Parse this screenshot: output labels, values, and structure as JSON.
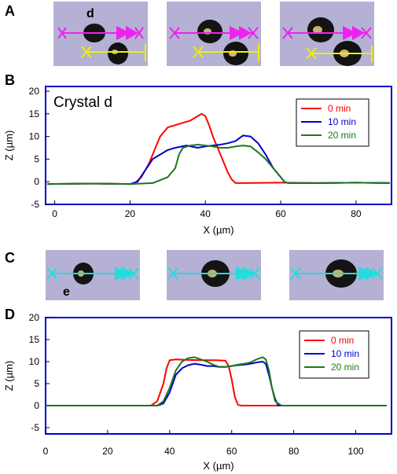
{
  "panels": {
    "a": "A",
    "b": "B",
    "c": "C",
    "d": "D"
  },
  "micrograph_labels": {
    "crystal_d": "d",
    "crystal_e": "e"
  },
  "colors": {
    "background_micrograph": "#b4b1d4",
    "plot_frame": "#0000cc",
    "series_0": "#ff0000",
    "series_10": "#0000cc",
    "series_20": "#1a7a1a",
    "arrow_magenta": "#ee22ee",
    "arrow_yellow": "#eeee00",
    "arrow_cyan": "#22dddd"
  },
  "chart_data": [
    {
      "id": "B",
      "type": "line",
      "annotation": "Crystal d",
      "xlabel": "X (µm)",
      "ylabel": "Z (µm)",
      "xlim": [
        -2,
        89
      ],
      "ylim": [
        -5,
        20
      ],
      "x_ticks": [
        0,
        20,
        40,
        60,
        80
      ],
      "y_ticks": [
        -5,
        0,
        5,
        10,
        15,
        20
      ],
      "legend_position": "top-right",
      "series": [
        {
          "name": "0 min",
          "color": "#ff0000",
          "x": [
            -2,
            10,
            21,
            23,
            25,
            27,
            28,
            30,
            32,
            34,
            36,
            38,
            39,
            40,
            41,
            42,
            44,
            46,
            47,
            48,
            50,
            60,
            70,
            80,
            89
          ],
          "y": [
            -0.5,
            -0.4,
            -0.5,
            1,
            4,
            8,
            10,
            12,
            12.5,
            13,
            13.5,
            14.5,
            15,
            14.5,
            12.5,
            10,
            6,
            2,
            0.5,
            -0.3,
            -0.3,
            -0.2,
            -0.3,
            -0.2,
            -0.3
          ]
        },
        {
          "name": "10 min",
          "color": "#0000cc",
          "x": [
            -2,
            10,
            20,
            22,
            24,
            26,
            28,
            30,
            32,
            35,
            38,
            40,
            42,
            44,
            46,
            48,
            50,
            52,
            54,
            56,
            58,
            60,
            61,
            62,
            70,
            80,
            89
          ],
          "y": [
            -0.5,
            -0.4,
            -0.5,
            0,
            2.5,
            5,
            6,
            7,
            7.5,
            8,
            7.5,
            7.8,
            8,
            8.2,
            8.5,
            9,
            10.2,
            10,
            8.5,
            6,
            3,
            1,
            0,
            -0.3,
            -0.3,
            -0.2,
            -0.3
          ]
        },
        {
          "name": "20 min",
          "color": "#1a7a1a",
          "x": [
            -2,
            10,
            20,
            26,
            30,
            32,
            33,
            34,
            36,
            38,
            40,
            42,
            44,
            46,
            48,
            50,
            52,
            54,
            56,
            58,
            60,
            61,
            62,
            70,
            80,
            89
          ],
          "y": [
            -0.5,
            -0.4,
            -0.5,
            -0.3,
            1,
            3,
            6,
            7.5,
            8,
            8.2,
            8,
            7.8,
            7.5,
            7.5,
            7.8,
            8,
            7.8,
            6.5,
            5,
            3,
            1,
            0,
            -0.3,
            -0.3,
            -0.2,
            -0.3
          ]
        }
      ]
    },
    {
      "id": "D",
      "type": "line",
      "xlabel": "X (µm)",
      "ylabel": "Z (µm)",
      "xlim": [
        0,
        110
      ],
      "ylim": [
        -5,
        20
      ],
      "x_ticks": [
        0,
        20,
        40,
        60,
        80,
        100
      ],
      "y_ticks": [
        -5,
        0,
        5,
        10,
        15,
        20
      ],
      "legend_position": "top-right",
      "series": [
        {
          "name": "0 min",
          "color": "#ff0000",
          "x": [
            0,
            20,
            34,
            36,
            38,
            39,
            40,
            42,
            45,
            50,
            55,
            58,
            59,
            60,
            61,
            62,
            63,
            70,
            80,
            100,
            110
          ],
          "y": [
            0,
            0,
            0,
            1,
            5,
            8.5,
            10.3,
            10.5,
            10.4,
            10.3,
            10.3,
            10.2,
            9,
            6,
            2,
            0.2,
            0,
            0,
            0,
            0,
            0
          ]
        },
        {
          "name": "10 min",
          "color": "#0000cc",
          "x": [
            0,
            20,
            36,
            38,
            40,
            42,
            44,
            46,
            48,
            50,
            52,
            54,
            56,
            58,
            60,
            62,
            64,
            66,
            68,
            70,
            71,
            72,
            73,
            74,
            75,
            80,
            100,
            110
          ],
          "y": [
            0,
            0,
            0,
            0.5,
            3,
            7,
            8.5,
            9.2,
            9.5,
            9.3,
            9,
            9,
            8.8,
            8.8,
            9,
            9.2,
            9.3,
            9.5,
            9.8,
            10,
            9.5,
            7,
            4,
            1.5,
            0,
            0,
            0,
            0
          ]
        },
        {
          "name": "20 min",
          "color": "#1a7a1a",
          "x": [
            0,
            20,
            36,
            38,
            40,
            42,
            44,
            46,
            48,
            50,
            52,
            54,
            56,
            58,
            60,
            62,
            64,
            66,
            68,
            70,
            71,
            72,
            73,
            74,
            76,
            80,
            100,
            110
          ],
          "y": [
            0,
            0,
            0,
            1,
            4,
            8,
            10,
            10.8,
            11,
            10.5,
            10,
            9.3,
            8.8,
            8.8,
            9,
            9.3,
            9.5,
            9.8,
            10.5,
            11,
            10.5,
            8,
            4,
            1,
            0,
            0,
            0,
            0
          ]
        }
      ]
    }
  ]
}
